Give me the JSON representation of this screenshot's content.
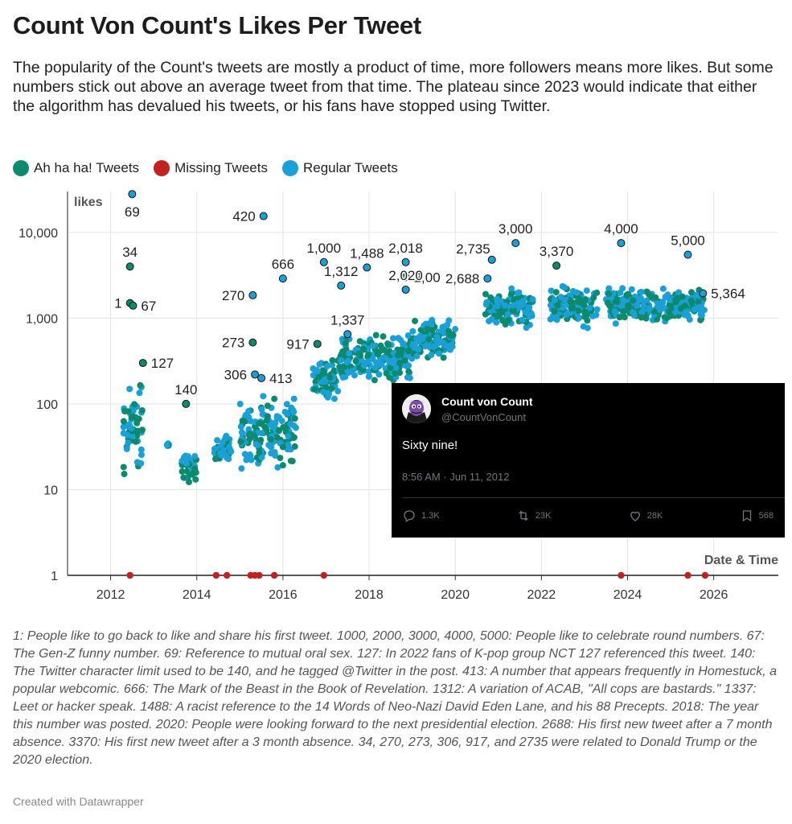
{
  "title": "Count Von Count's Likes Per Tweet",
  "subtitle": "The popularity of the Count's tweets are mostly a product of time, more followers means more likes. But some numbers stick out above an average tweet from that time. The plateau since 2023 would indicate that either the algorithm has devalued his tweets, or his fans have stopped using Twitter.",
  "legend": [
    {
      "label": "Ah ha ha! Tweets",
      "color": "#0b8a6e"
    },
    {
      "label": "Missing Tweets",
      "color": "#c1221f"
    },
    {
      "label": "Regular Tweets",
      "color": "#1aa0d6"
    }
  ],
  "notes": "1: People like to go back to like and share his first tweet. 1000, 2000, 3000, 4000, 5000: People like to celebrate round numbers. 67: The Gen-Z funny number. 69: Reference to mutual oral sex. 127: In 2022 fans of K-pop group NCT 127 referenced this tweet. 140: The Twitter character limit used to be 140, and he tagged @Twitter in the post. 413: A number that appears frequently in Homestuck, a popular webcomic. 666: The Mark of the Beast in the Book of Revelation. 1312: A variation of ACAB, \"All cops are bastards.\" 1337: Leet or hacker speak. 1488: A racist reference to the 14 Words of Neo-Nazi David Eden Lane, and his 88 Precepts. 2018: The year this number was posted. 2020: People were looking forward to the next presidential election. 2688: His first new tweet after a 7 month absence. 3370: His first new tweet after a 3 month absence. 34, 270, 273, 306, 917, and 2735 were related to Donald Trump or the 2020 election.",
  "credit": "Created with Datawrapper",
  "tweet": {
    "name": "Count von Count",
    "handle": "@CountVonCount",
    "text": "Sixty nine!",
    "time": "8:56 AM · Jun 11, 2012",
    "replies": "1.3K",
    "retweets": "23K",
    "likes": "28K",
    "bookmarks": "568"
  },
  "chart_data": {
    "type": "scatter",
    "ylabel": "likes",
    "xlabel": "Date & Time",
    "yscale": "log",
    "ylim": [
      1,
      30000
    ],
    "xlim": [
      2011.0,
      2027.5
    ],
    "yticks": [
      1,
      10,
      100,
      1000,
      10000
    ],
    "ytick_labels": [
      "1",
      "10",
      "100",
      "1,000",
      "10,000"
    ],
    "xticks": [
      2012,
      2014,
      2016,
      2018,
      2020,
      2022,
      2024,
      2026
    ],
    "xtick_labels": [
      "2012",
      "2014",
      "2016",
      "2018",
      "2020",
      "2022",
      "2024",
      "2026"
    ],
    "grid": true,
    "legend_position": "top-left",
    "series": [
      {
        "name": "Ah ha ha! Tweets",
        "color": "#0b8a6e"
      },
      {
        "name": "Missing Tweets",
        "color": "#c1221f"
      },
      {
        "name": "Regular Tweets",
        "color": "#1aa0d6"
      }
    ],
    "labeled_points": [
      {
        "label": "1",
        "x": 2012.45,
        "y": 1500,
        "series": "Ah ha ha! Tweets"
      },
      {
        "label": "67",
        "x": 2012.52,
        "y": 1400,
        "series": "Ah ha ha! Tweets"
      },
      {
        "label": "34",
        "x": 2012.45,
        "y": 4000,
        "series": "Ah ha ha! Tweets"
      },
      {
        "label": "69",
        "x": 2012.5,
        "y": 28000,
        "series": "Regular Tweets"
      },
      {
        "label": "127",
        "x": 2012.75,
        "y": 300,
        "series": "Ah ha ha! Tweets"
      },
      {
        "label": "140",
        "x": 2013.75,
        "y": 100,
        "series": "Ah ha ha! Tweets"
      },
      {
        "label": "420",
        "x": 2015.55,
        "y": 15500,
        "series": "Regular Tweets"
      },
      {
        "label": "270",
        "x": 2015.3,
        "y": 1850,
        "series": "Regular Tweets"
      },
      {
        "label": "273",
        "x": 2015.3,
        "y": 520,
        "series": "Ah ha ha! Tweets"
      },
      {
        "label": "306",
        "x": 2015.35,
        "y": 220,
        "series": "Regular Tweets"
      },
      {
        "label": "413",
        "x": 2015.5,
        "y": 200,
        "series": "Regular Tweets"
      },
      {
        "label": "666",
        "x": 2016.0,
        "y": 2900,
        "series": "Regular Tweets"
      },
      {
        "label": "917",
        "x": 2016.8,
        "y": 500,
        "series": "Ah ha ha! Tweets"
      },
      {
        "label": "1,000",
        "x": 2016.95,
        "y": 4500,
        "series": "Regular Tweets"
      },
      {
        "label": "1,312",
        "x": 2017.35,
        "y": 2400,
        "series": "Regular Tweets"
      },
      {
        "label": "1,337",
        "x": 2017.5,
        "y": 650,
        "series": "Regular Tweets"
      },
      {
        "label": "1,488",
        "x": 2017.95,
        "y": 3900,
        "series": "Regular Tweets"
      },
      {
        "label": "2,018",
        "x": 2018.85,
        "y": 4500,
        "series": "Regular Tweets"
      },
      {
        "label": "2,00",
        "x": 2018.85,
        "y": 3000,
        "series": "Ah ha ha! Tweets"
      },
      {
        "label": "2,020",
        "x": 2018.85,
        "y": 2150,
        "series": "Regular Tweets"
      },
      {
        "label": "2,688",
        "x": 2020.75,
        "y": 2900,
        "series": "Regular Tweets"
      },
      {
        "label": "2,735",
        "x": 2020.85,
        "y": 4800,
        "series": "Regular Tweets"
      },
      {
        "label": "3,000",
        "x": 2021.4,
        "y": 7500,
        "series": "Regular Tweets"
      },
      {
        "label": "3,370",
        "x": 2022.35,
        "y": 4100,
        "series": "Ah ha ha! Tweets"
      },
      {
        "label": "4,000",
        "x": 2023.85,
        "y": 7500,
        "series": "Regular Tweets"
      },
      {
        "label": "5,000",
        "x": 2025.4,
        "y": 5500,
        "series": "Regular Tweets"
      },
      {
        "label": "5,364",
        "x": 2025.75,
        "y": 1950,
        "series": "Regular Tweets"
      }
    ],
    "missing_tweets_x": [
      2012.45,
      2014.45,
      2014.7,
      2015.25,
      2015.35,
      2015.45,
      2015.8,
      2016.95,
      2023.85,
      2025.4,
      2025.8
    ],
    "clusters": [
      {
        "x": [
          2012.3,
          2012.75
        ],
        "y": [
          11,
          220
        ]
      },
      {
        "x": [
          2013.3,
          2013.35
        ],
        "y": [
          30,
          36
        ]
      },
      {
        "x": [
          2013.65,
          2014.0
        ],
        "y": [
          11,
          30
        ]
      },
      {
        "x": [
          2014.4,
          2014.8
        ],
        "y": [
          18,
          50
        ]
      },
      {
        "x": [
          2015.0,
          2016.3
        ],
        "y": [
          15,
          150
        ]
      },
      {
        "x": [
          2016.7,
          2017.3
        ],
        "y": [
          80,
          400
        ]
      },
      {
        "x": [
          2017.3,
          2019.0
        ],
        "y": [
          150,
          800
        ]
      },
      {
        "x": [
          2019.0,
          2020.0
        ],
        "y": [
          300,
          1100
        ]
      },
      {
        "x": [
          2020.7,
          2021.8
        ],
        "y": [
          700,
          2500
        ]
      },
      {
        "x": [
          2022.2,
          2023.3
        ],
        "y": [
          700,
          2500
        ]
      },
      {
        "x": [
          2023.5,
          2025.8
        ],
        "y": [
          800,
          2500
        ]
      }
    ]
  }
}
